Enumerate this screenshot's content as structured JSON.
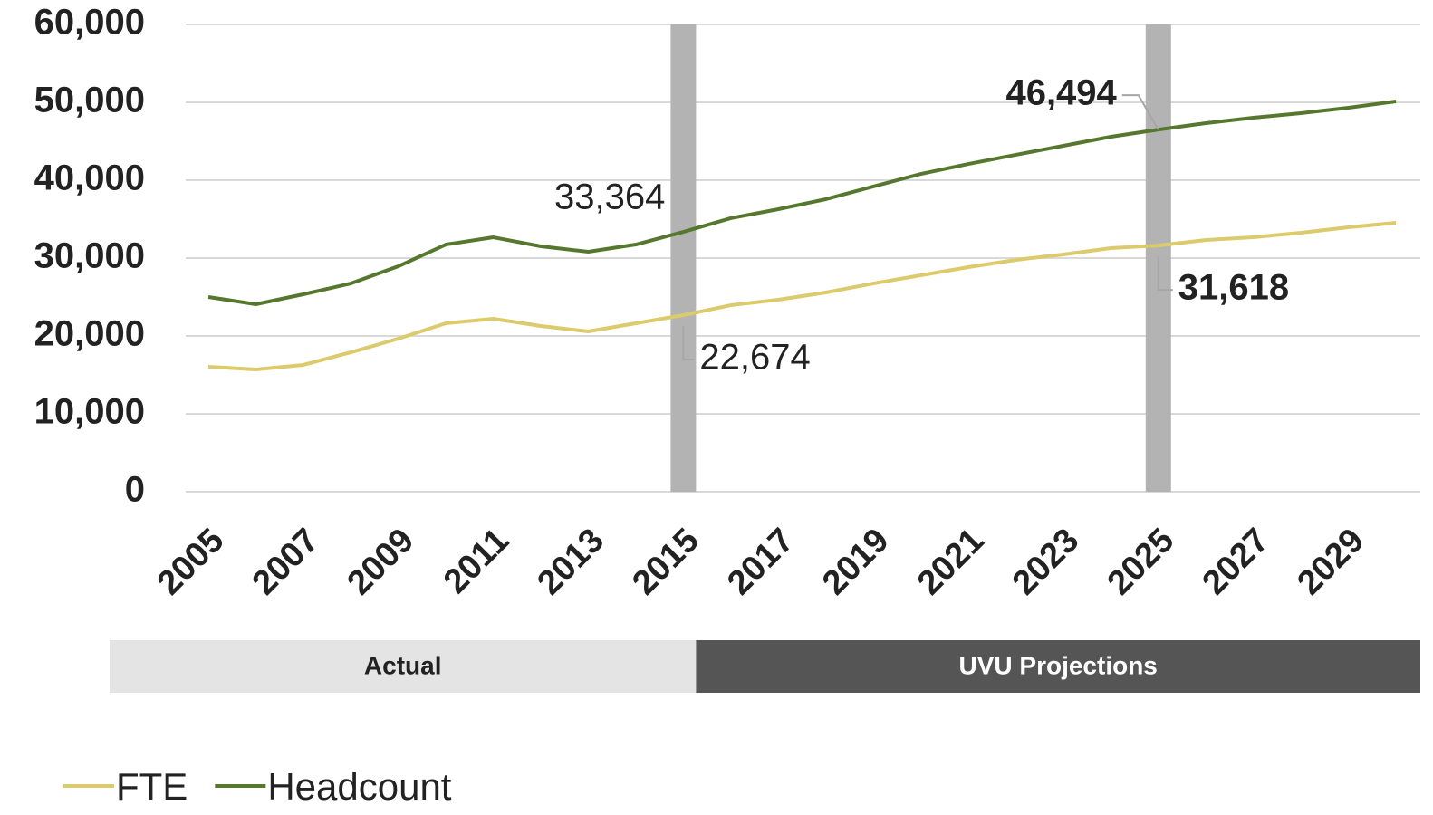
{
  "chart_data": {
    "type": "line",
    "categories": [
      "2005",
      null,
      "2007",
      null,
      "2009",
      null,
      "2011",
      null,
      "2013",
      null,
      "2015",
      null,
      "2017",
      null,
      "2019",
      null,
      "2021",
      null,
      "2023",
      null,
      "2025",
      null,
      "2027",
      null,
      "2029",
      null
    ],
    "series": [
      {
        "name": "FTE",
        "color": "#dccb6c",
        "values": [
          16050,
          15700,
          16280,
          17900,
          19650,
          21630,
          22210,
          21280,
          20580,
          21630,
          22674,
          23950,
          24650,
          25580,
          26740,
          27790,
          28840,
          29770,
          30470,
          31280,
          31618,
          32330,
          32670,
          33260,
          33950,
          34530
        ],
        "value_labels": [
          null,
          null,
          null,
          null,
          null,
          null,
          null,
          null,
          null,
          null,
          "22,674",
          null,
          null,
          null,
          null,
          null,
          null,
          null,
          null,
          null,
          "31,618",
          null,
          null,
          null,
          null,
          null
        ]
      },
      {
        "name": "Headcount",
        "color": "#56782e",
        "values": [
          25000,
          24070,
          25350,
          26740,
          28950,
          31740,
          32670,
          31510,
          30810,
          31740,
          33364,
          35120,
          36280,
          37560,
          39190,
          40810,
          42090,
          43260,
          44420,
          45580,
          46494,
          47330,
          48020,
          48600,
          49300,
          50120
        ],
        "value_labels": [
          null,
          null,
          null,
          null,
          null,
          null,
          null,
          null,
          null,
          null,
          "33,364",
          null,
          null,
          null,
          null,
          null,
          null,
          null,
          null,
          null,
          "46,494",
          null,
          null,
          null,
          null,
          null
        ]
      }
    ],
    "ylim": [
      0,
      60000
    ],
    "yticks": [
      0,
      {
        "value": 10000,
        "label": "10,000"
      },
      {
        "value": 20000,
        "label": "20,000"
      },
      {
        "value": 30000,
        "label": "30,000"
      },
      {
        "value": 40000,
        "label": "40,000"
      },
      {
        "value": 50000,
        "label": "50,000"
      },
      {
        "value": 60000,
        "label": "60,000"
      }
    ],
    "grid": true,
    "period_labels": [
      "Actual",
      "UVU Projections"
    ],
    "legend": "bottom-left"
  }
}
